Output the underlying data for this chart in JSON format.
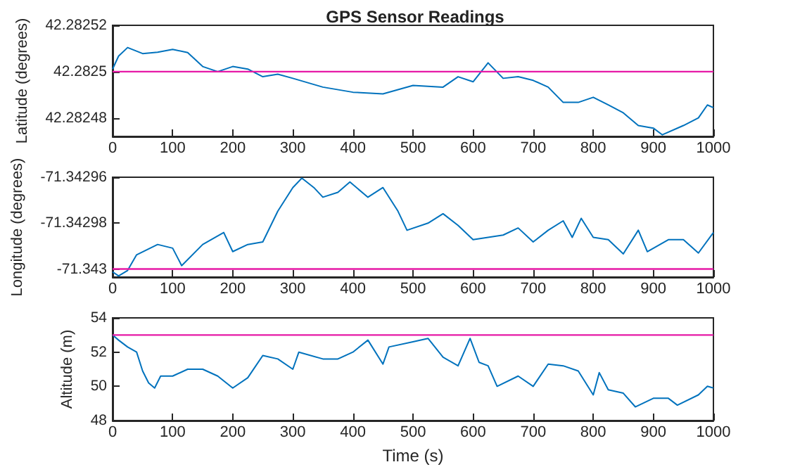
{
  "chart_data": [
    {
      "type": "line",
      "title": "GPS Sensor Readings",
      "ylabel": "Latitude (degrees)",
      "marker": "none",
      "xlim": [
        0,
        1000
      ],
      "xticks": [
        0,
        100,
        200,
        300,
        400,
        500,
        600,
        700,
        800,
        900,
        1000
      ],
      "ylim": [
        42.282472,
        42.28252
      ],
      "yticks": [
        42.28248,
        42.2825,
        42.28252
      ],
      "x": [
        0,
        10,
        25,
        50,
        75,
        100,
        125,
        150,
        175,
        200,
        225,
        250,
        275,
        300,
        350,
        400,
        450,
        500,
        550,
        575,
        600,
        625,
        650,
        675,
        700,
        725,
        750,
        775,
        800,
        825,
        850,
        875,
        900,
        915,
        950,
        975,
        990,
        1000
      ],
      "series": [
        {
          "color": "#0072bd",
          "values": [
            42.2825011,
            42.2825067,
            42.2825104,
            42.2825078,
            42.2825084,
            42.2825096,
            42.2825082,
            42.2825022,
            42.2825,
            42.2825022,
            42.2825011,
            42.2824978,
            42.2824989,
            42.2824971,
            42.2824933,
            42.2824911,
            42.2824904,
            42.282494,
            42.2824933,
            42.2824978,
            42.2824956,
            42.2825038,
            42.2824971,
            42.2824978,
            42.2824962,
            42.2824933,
            42.2824867,
            42.2824867,
            42.2824889,
            42.2824856,
            42.2824822,
            42.2824767,
            42.2824756,
            42.2824727,
            42.2824767,
            42.28248,
            42.2824856,
            42.2824844
          ]
        }
      ],
      "ref_lines": [
        {
          "axis": "y",
          "value": 42.2825,
          "color": "#e619a6"
        }
      ]
    },
    {
      "type": "line",
      "ylabel": "Longitude (degrees)",
      "marker": "none",
      "xlim": [
        0,
        1000
      ],
      "xticks": [
        0,
        100,
        200,
        300,
        400,
        500,
        600,
        700,
        800,
        900,
        1000
      ],
      "ylim": [
        -71.3430035,
        -71.34296
      ],
      "yticks": [
        -71.343,
        -71.34298,
        -71.34296
      ],
      "x": [
        0,
        10,
        25,
        40,
        75,
        100,
        115,
        150,
        185,
        200,
        225,
        250,
        275,
        300,
        315,
        335,
        350,
        375,
        395,
        425,
        450,
        475,
        490,
        525,
        550,
        575,
        600,
        650,
        675,
        700,
        725,
        750,
        765,
        780,
        800,
        825,
        850,
        875,
        890,
        925,
        950,
        975,
        1000
      ],
      "series": [
        {
          "color": "#0072bd",
          "values": [
            -71.3430012,
            -71.343003,
            -71.3430006,
            -71.3429938,
            -71.3429893,
            -71.3429909,
            -71.3429985,
            -71.3429893,
            -71.3429841,
            -71.3429924,
            -71.3429893,
            -71.3429882,
            -71.3429748,
            -71.3429645,
            -71.3429604,
            -71.3429645,
            -71.3429687,
            -71.3429666,
            -71.3429621,
            -71.3429687,
            -71.3429645,
            -71.3429748,
            -71.3429831,
            -71.34298,
            -71.3429759,
            -71.342981,
            -71.3429872,
            -71.3429852,
            -71.3429821,
            -71.3429882,
            -71.3429831,
            -71.342979,
            -71.3429862,
            -71.3429779,
            -71.3429862,
            -71.3429872,
            -71.3429934,
            -71.3429831,
            -71.3429924,
            -71.3429872,
            -71.3429872,
            -71.342993,
            -71.3429841
          ]
        }
      ],
      "ref_lines": [
        {
          "axis": "y",
          "value": -71.343,
          "color": "#e619a6"
        }
      ]
    },
    {
      "type": "line",
      "xlabel": "Time (s)",
      "ylabel": "Altitude (m)",
      "marker": "none",
      "xlim": [
        0,
        1000
      ],
      "xticks": [
        0,
        100,
        200,
        300,
        400,
        500,
        600,
        700,
        800,
        900,
        1000
      ],
      "ylim": [
        48,
        54
      ],
      "yticks": [
        48,
        50,
        52,
        54
      ],
      "x": [
        0,
        10,
        25,
        40,
        50,
        60,
        70,
        80,
        100,
        125,
        150,
        175,
        200,
        225,
        250,
        275,
        300,
        310,
        350,
        375,
        400,
        425,
        450,
        460,
        500,
        525,
        550,
        575,
        595,
        610,
        625,
        640,
        675,
        700,
        725,
        750,
        775,
        800,
        810,
        825,
        850,
        870,
        900,
        925,
        940,
        975,
        990,
        1000
      ],
      "series": [
        {
          "color": "#0072bd",
          "values": [
            53.0,
            52.7,
            52.3,
            52.0,
            50.9,
            50.2,
            49.9,
            50.6,
            50.6,
            51.0,
            51.0,
            50.6,
            49.9,
            50.5,
            51.8,
            51.6,
            51.0,
            52.0,
            51.6,
            51.6,
            52.0,
            52.7,
            51.3,
            52.3,
            52.6,
            52.8,
            51.7,
            51.2,
            52.8,
            51.4,
            51.2,
            50.0,
            50.6,
            50.0,
            51.3,
            51.2,
            50.9,
            49.5,
            50.8,
            49.8,
            49.6,
            48.8,
            49.3,
            49.3,
            48.9,
            49.5,
            50.0,
            49.9
          ]
        }
      ],
      "ref_lines": [
        {
          "axis": "y",
          "value": 53,
          "color": "#e619a6"
        }
      ]
    }
  ]
}
